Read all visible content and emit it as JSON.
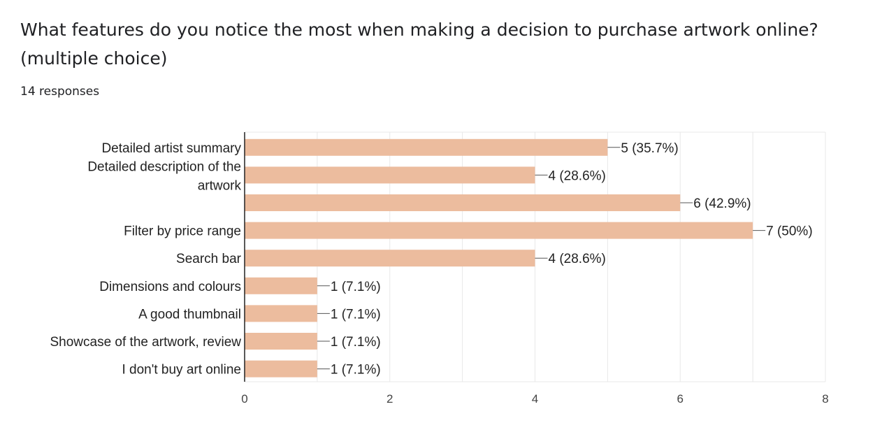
{
  "question": {
    "title": "What features do you notice the most when making a decision to purchase artwork online? (multiple choice)",
    "responses": "14 responses"
  },
  "colors": {
    "bar": "#ecbc9e",
    "grid": "#e8e8e8",
    "axis": "#222222"
  },
  "chart_data": {
    "type": "bar",
    "orientation": "horizontal",
    "categories": [
      "Detailed artist summary",
      "Detailed description of the artwork",
      "",
      "Filter by price range",
      "Search bar",
      "Dimensions and colours",
      "A good thumbnail",
      "Showcase of the artwork, review",
      "I don't buy art online"
    ],
    "values": [
      5,
      4,
      6,
      7,
      4,
      1,
      1,
      1,
      1
    ],
    "data_labels": [
      "5 (35.7%)",
      "4 (28.6%)",
      "6 (42.9%)",
      "7 (50%)",
      "4 (28.6%)",
      "1 (7.1%)",
      "1 (7.1%)",
      "1 (7.1%)",
      "1 (7.1%)"
    ],
    "xlim": [
      0,
      8
    ],
    "xticks": [
      "0",
      "2",
      "4",
      "6",
      "8"
    ],
    "grid": true
  }
}
